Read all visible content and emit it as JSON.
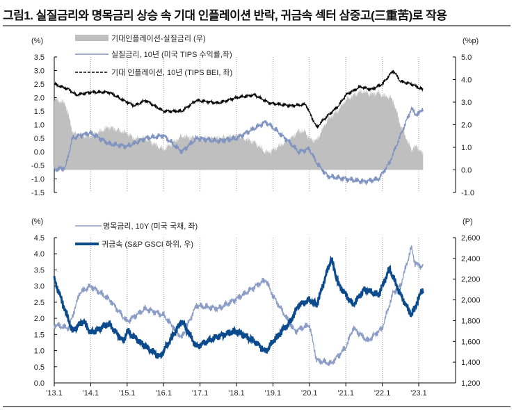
{
  "title": "그림1. 실질금리와 명목금리 상승 속 기대 인플레이션 반락, 귀금속 섹터 삼중고(三重苦)로 작용",
  "chart_data": [
    {
      "type": "line+area",
      "left_unit": "(%)",
      "right_unit": "(%p)",
      "ylim_left": [
        -1.5,
        3.5
      ],
      "yticks_left": [
        "3.5",
        "3.0",
        "2.5",
        "2.0",
        "1.5",
        "1.0",
        "0.5",
        "0.0",
        "-0.5",
        "-1.0",
        "-1.5"
      ],
      "ylim_right": [
        -1.0,
        5.0
      ],
      "yticks_right": [
        "5.0",
        "4.0",
        "3.0",
        "2.0",
        "1.0",
        "0.0",
        "-1.0"
      ],
      "series": [
        {
          "name": "기대인플레이션-실질금리 (우)",
          "kind": "area",
          "color": "#bfbfbf",
          "derived": "BEI minus real"
        },
        {
          "name": "실질금리, 10년 (미국 TIPS 수익률,좌)",
          "kind": "line",
          "color": "#7f93c0",
          "axis": "left",
          "x": [
            2013.0,
            2013.3,
            2013.5,
            2013.7,
            2014.0,
            2014.5,
            2015.0,
            2015.5,
            2016.0,
            2016.5,
            2016.9,
            2017.5,
            2018.0,
            2018.8,
            2019.0,
            2019.5,
            2019.7,
            2020.0,
            2020.2,
            2020.5,
            2021.0,
            2021.5,
            2021.9,
            2022.0,
            2022.2,
            2022.5,
            2022.8,
            2022.9,
            2023.0,
            2023.1
          ],
          "y": [
            -0.65,
            -0.6,
            0.5,
            0.6,
            0.7,
            0.3,
            0.2,
            0.5,
            0.6,
            0.0,
            0.5,
            0.4,
            0.5,
            1.1,
            0.9,
            0.3,
            0.0,
            0.1,
            -0.4,
            -0.9,
            -1.0,
            -1.1,
            -1.0,
            -0.8,
            -0.4,
            0.6,
            1.6,
            1.4,
            1.4,
            1.6
          ]
        },
        {
          "name": "기대 인플레이션, 10년 (TIPS BEI, 좌)",
          "kind": "dashed",
          "color": "#000000",
          "axis": "left",
          "x": [
            2013.0,
            2013.4,
            2013.6,
            2014.0,
            2014.5,
            2014.9,
            2015.2,
            2015.5,
            2016.0,
            2016.5,
            2016.9,
            2017.5,
            2018.0,
            2018.5,
            2018.9,
            2019.5,
            2019.9,
            2020.2,
            2020.4,
            2020.8,
            2021.0,
            2021.4,
            2021.7,
            2022.0,
            2022.3,
            2022.5,
            2022.8,
            2023.1
          ],
          "y": [
            2.5,
            2.3,
            2.1,
            2.2,
            2.2,
            1.9,
            1.7,
            1.9,
            1.5,
            1.5,
            1.9,
            1.8,
            2.0,
            2.1,
            1.8,
            1.7,
            1.75,
            0.9,
            1.2,
            1.7,
            2.1,
            2.4,
            2.3,
            2.5,
            3.0,
            2.6,
            2.5,
            2.3
          ]
        }
      ]
    },
    {
      "type": "line",
      "left_unit": "(%)",
      "right_unit": "(P)",
      "ylim_left": [
        0,
        4.5
      ],
      "yticks_left": [
        "4.5",
        "4.0",
        "3.5",
        "3.0",
        "2.5",
        "2.0",
        "1.5",
        "1.0",
        "0.5",
        "0.0"
      ],
      "ylim_right": [
        1200,
        2600
      ],
      "yticks_right": [
        "2,600",
        "2,400",
        "2,200",
        "2,000",
        "1,800",
        "1,600",
        "1,400",
        "1,200"
      ],
      "xticks": [
        "'13.1",
        "'14.1",
        "'15.1",
        "'16.1",
        "'17.1",
        "'18.1",
        "'19.1",
        "'20.1",
        "'21.1",
        "'22.1",
        "'23.1"
      ],
      "series": [
        {
          "name": "명목금리, 10Y (미국 국채, 좌)",
          "color": "#8a9cc6",
          "axis": "left",
          "x": [
            2013.0,
            2013.4,
            2013.7,
            2014.0,
            2014.5,
            2015.0,
            2015.5,
            2016.0,
            2016.5,
            2016.9,
            2017.5,
            2018.0,
            2018.8,
            2019.0,
            2019.6,
            2020.0,
            2020.2,
            2020.6,
            2021.0,
            2021.2,
            2021.6,
            2022.0,
            2022.3,
            2022.5,
            2022.8,
            2022.9,
            2023.1
          ],
          "y": [
            1.8,
            1.7,
            2.8,
            3.0,
            2.6,
            1.9,
            2.3,
            2.1,
            1.4,
            2.4,
            2.3,
            2.6,
            3.2,
            2.7,
            1.6,
            1.8,
            0.7,
            0.6,
            1.1,
            1.7,
            1.3,
            1.7,
            2.8,
            3.0,
            4.2,
            3.7,
            3.6
          ]
        },
        {
          "name": "귀금속 (S&P GSCI 하위, 우)",
          "color": "#0b4a8c",
          "axis": "right",
          "x": [
            2013.0,
            2013.3,
            2013.5,
            2013.8,
            2014.0,
            2014.5,
            2014.9,
            2015.0,
            2015.5,
            2015.9,
            2016.5,
            2016.9,
            2017.5,
            2018.0,
            2018.5,
            2018.8,
            2019.0,
            2019.5,
            2019.7,
            2020.0,
            2020.2,
            2020.6,
            2020.8,
            2021.2,
            2021.5,
            2021.9,
            2022.2,
            2022.5,
            2022.8,
            2023.1
          ],
          "y": [
            2200,
            1900,
            1700,
            1800,
            1680,
            1770,
            1600,
            1700,
            1550,
            1450,
            1800,
            1550,
            1650,
            1700,
            1600,
            1500,
            1600,
            1800,
            1950,
            2000,
            1950,
            2400,
            2150,
            1950,
            2100,
            2050,
            2300,
            2050,
            1850,
            2100
          ]
        }
      ]
    }
  ]
}
